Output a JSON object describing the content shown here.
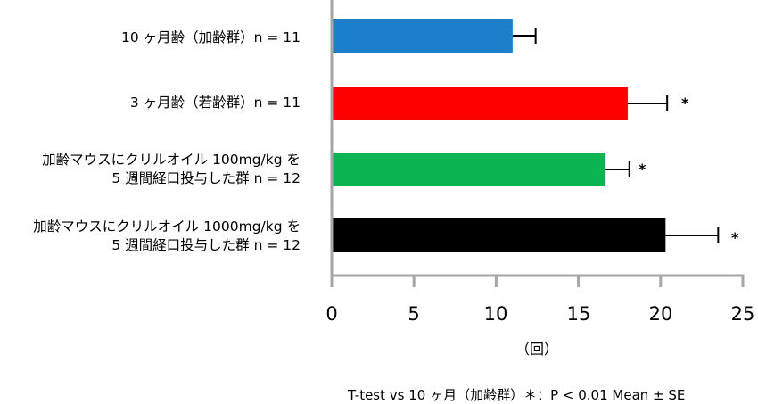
{
  "chart_data": {
    "type": "bar",
    "orientation": "horizontal",
    "categories": [
      [
        "10 ヶ月齢（加齢群）n = 11"
      ],
      [
        "3 ヶ月齢（若齢群）n = 11"
      ],
      [
        "加齢マウスにクリルオイル 100mg/kg を",
        "5 週間経口投与した群 n = 12"
      ],
      [
        "加齢マウスにクリルオイル 1000mg/kg を",
        "5 週間経口投与した群 n = 12"
      ]
    ],
    "values": [
      11.0,
      18.0,
      16.6,
      20.3
    ],
    "errors": [
      1.4,
      2.4,
      1.5,
      3.2
    ],
    "colors": [
      "#1b7fcb",
      "#ff0000",
      "#0db454",
      "#000000"
    ],
    "significance": [
      "",
      "*",
      "*",
      "*"
    ],
    "xlim": [
      0,
      25
    ],
    "xticks": [
      "0",
      "5",
      "10",
      "15",
      "20",
      "25"
    ],
    "xlabel": "（回）",
    "footnote": "T-test vs 10 ヶ月（加齢群）＊：P < 0.01   Mean ± SE",
    "axis_color": "#a6a6a6",
    "grid": false
  }
}
